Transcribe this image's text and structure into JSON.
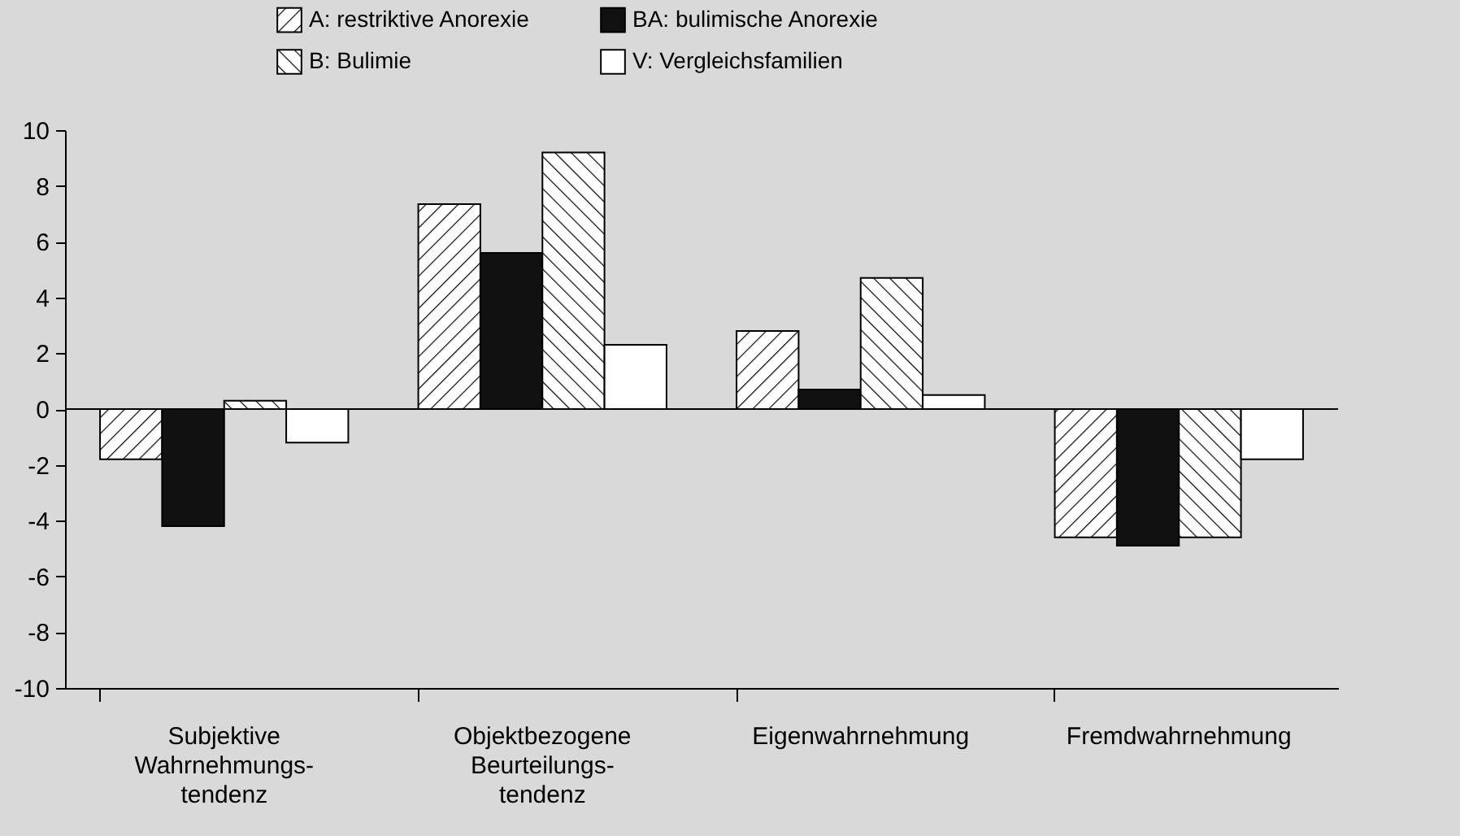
{
  "chart_data": {
    "type": "bar",
    "categories": [
      "Subjektive\nWahrnehmungs-\ntendenz",
      "Objektbezogene\nBeurteilungs-\ntendenz",
      "Eigenwahrnehmung",
      "Fremdwahrnehmung"
    ],
    "series": [
      {
        "name": "A: restriktive Anorexie",
        "color": "#000000",
        "values": [
          -1.8,
          7.35,
          2.8,
          -4.6
        ]
      },
      {
        "name": "BA: bulimische Anorexie",
        "color": "#111111",
        "values": [
          -4.2,
          5.6,
          0.7,
          -4.9
        ]
      },
      {
        "name": "B: Bulimie",
        "color": "#000000",
        "values": [
          0.3,
          9.2,
          4.7,
          -4.6
        ]
      },
      {
        "name": "V: Vergleichsfamilien",
        "color": "#ffffff",
        "values": [
          -1.2,
          2.3,
          0.5,
          -1.8
        ]
      }
    ],
    "ylim": [
      -10,
      10
    ],
    "yticks": [
      -10,
      -8,
      -6,
      -4,
      -2,
      0,
      2,
      4,
      6,
      8,
      10
    ],
    "ref_lines": [
      {
        "axis": "y",
        "value": 0
      }
    ],
    "legend": "top"
  }
}
